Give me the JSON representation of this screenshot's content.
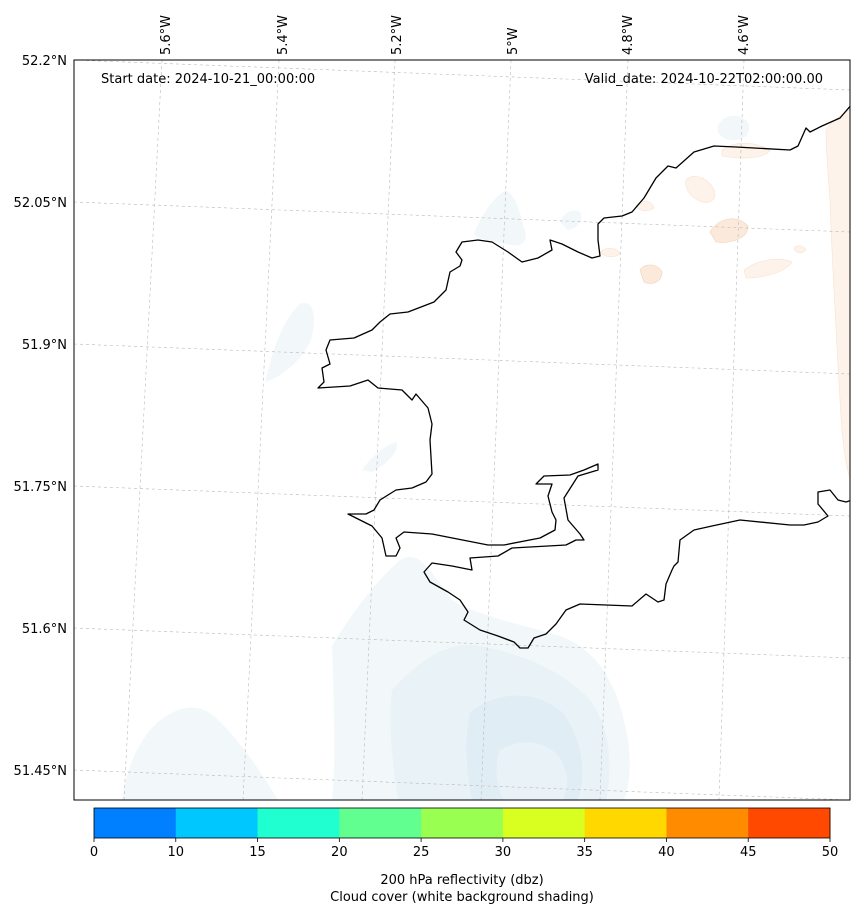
{
  "header": {
    "start_date": "Start date: 2024-10-21_00:00:00",
    "valid_date": "Valid_date: 2024-10-22T02:00:00.00"
  },
  "axes": {
    "lon_labels": [
      "5.6°W",
      "5.4°W",
      "5.2°W",
      "5°W",
      "4.8°W",
      "4.6°W"
    ],
    "lat_labels": [
      "52.2°N",
      "52.05°N",
      "51.9°N",
      "51.75°N",
      "51.6°N",
      "51.45°N"
    ]
  },
  "colorbar": {
    "ticks": [
      "0",
      "10",
      "15",
      "20",
      "25",
      "30",
      "35",
      "40",
      "45",
      "50"
    ],
    "colors": [
      "#0080ff",
      "#00c8ff",
      "#20ffd0",
      "#60ff90",
      "#99ff50",
      "#d8ff20",
      "#ffd800",
      "#ff8c00",
      "#ff4800"
    ],
    "label_line1": "200 hPa reflectivity (dbz)",
    "label_line2": "Cloud cover (white background shading)"
  }
}
